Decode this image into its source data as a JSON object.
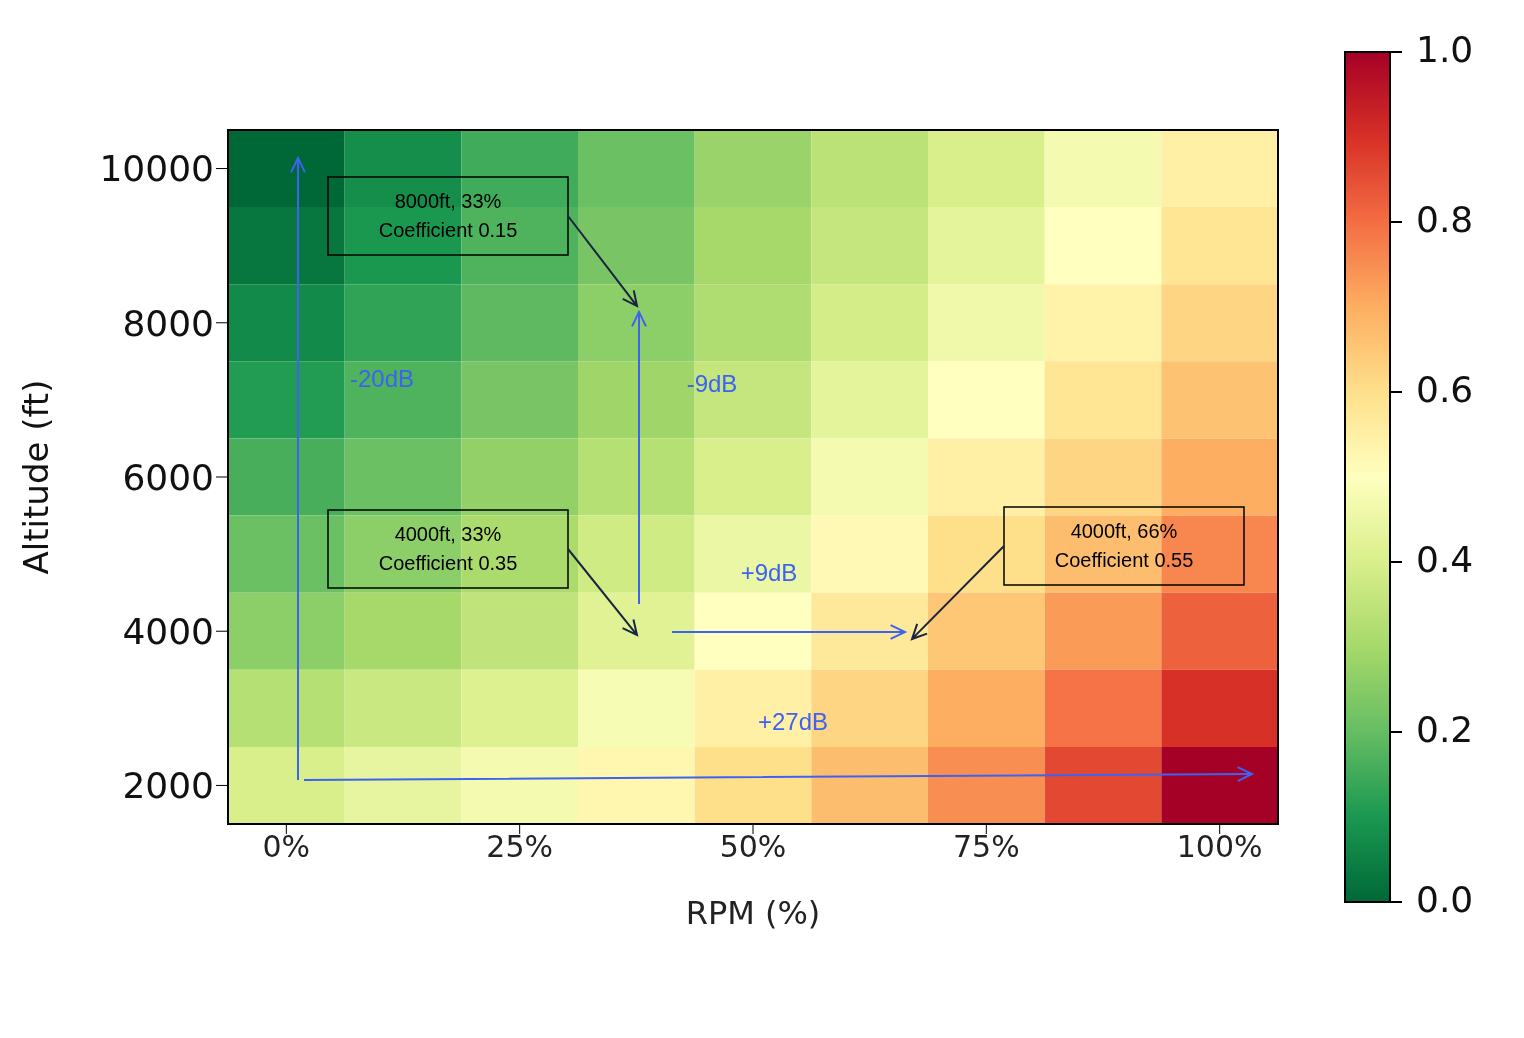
{
  "chart_data": {
    "type": "heatmap",
    "xlabel": "RPM (%)",
    "ylabel": "Altitude (ft)",
    "categories": [
      "0%",
      null,
      "25%",
      null,
      "50%",
      null,
      "75%",
      null,
      "100%"
    ],
    "y_categories": [
      "10000",
      null,
      "8000",
      null,
      "6000",
      null,
      "4000",
      null,
      "2000"
    ],
    "cells": [
      [
        0.0,
        0.08,
        0.15,
        0.21,
        0.28,
        0.34,
        0.4,
        0.47,
        0.55
      ],
      [
        0.03,
        0.1,
        0.17,
        0.23,
        0.3,
        0.36,
        0.43,
        0.5,
        0.58
      ],
      [
        0.07,
        0.13,
        0.19,
        0.26,
        0.32,
        0.39,
        0.46,
        0.54,
        0.62
      ],
      [
        0.11,
        0.17,
        0.23,
        0.29,
        0.36,
        0.43,
        0.5,
        0.58,
        0.66
      ],
      [
        0.16,
        0.21,
        0.27,
        0.33,
        0.4,
        0.47,
        0.55,
        0.62,
        0.7
      ],
      [
        0.21,
        0.26,
        0.31,
        0.38,
        0.45,
        0.52,
        0.6,
        0.67,
        0.76
      ],
      [
        0.26,
        0.3,
        0.35,
        0.42,
        0.5,
        0.57,
        0.65,
        0.73,
        0.82
      ],
      [
        0.33,
        0.37,
        0.41,
        0.48,
        0.55,
        0.62,
        0.7,
        0.79,
        0.9
      ],
      [
        0.4,
        0.44,
        0.47,
        0.53,
        0.6,
        0.67,
        0.75,
        0.86,
        1.0
      ]
    ],
    "clim": [
      0,
      1
    ],
    "cticks": [
      {
        "value": 0,
        "label": "0.0"
      },
      {
        "value": 0.2,
        "label": "0.2"
      },
      {
        "value": 0.4,
        "label": "0.4"
      },
      {
        "value": 0.6,
        "label": "0.6"
      },
      {
        "value": 0.8,
        "label": "0.8"
      },
      {
        "value": 1,
        "label": "1.0"
      }
    ],
    "annotations": [
      "8000ft, 33%\nCoefficient 0.15",
      "4000ft, 33%\nCoefficient 0.35",
      "4000ft, 66%\nCoefficient 0.55",
      "-20dB",
      "-9dB",
      "+9dB",
      "+27dB"
    ]
  }
}
